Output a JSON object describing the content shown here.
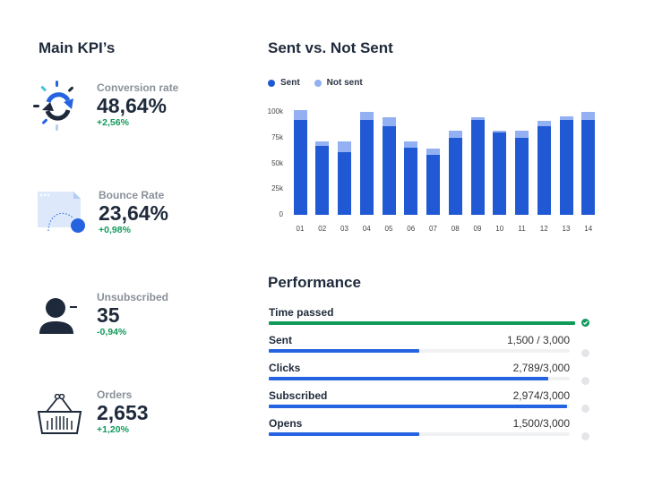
{
  "kpis": {
    "title": "Main KPI’s",
    "items": [
      {
        "label": "Conversion rate",
        "value": "48,64%",
        "delta": "+2,56%",
        "icon": "refresh-icon"
      },
      {
        "label": "Bounce Rate",
        "value": "23,64%",
        "delta": "+0,98%",
        "icon": "bounce-page-icon"
      },
      {
        "label": "Unsubscribed",
        "value": "35",
        "delta": "-0,94%",
        "icon": "user-minus-icon"
      },
      {
        "label": "Orders",
        "value": "2,653",
        "delta": "+1,20%",
        "icon": "basket-icon"
      }
    ]
  },
  "chart_data": {
    "type": "bar",
    "stacked": true,
    "title": "Sent vs. Not Sent",
    "categories": [
      "01",
      "02",
      "03",
      "04",
      "05",
      "06",
      "07",
      "08",
      "09",
      "10",
      "11",
      "12",
      "13",
      "14"
    ],
    "series": [
      {
        "name": "Sent",
        "color": "#2159d4",
        "values": [
          92000,
          67000,
          61000,
          92000,
          86000,
          65000,
          58000,
          75000,
          92000,
          80000,
          75000,
          86000,
          92000,
          92000
        ]
      },
      {
        "name": "Not sent",
        "color": "#92b0f2",
        "values": [
          10000,
          4000,
          10000,
          8000,
          9000,
          6000,
          6000,
          7000,
          3000,
          2000,
          7000,
          5000,
          4000,
          8000
        ]
      }
    ],
    "yticks": [
      "0",
      "25k",
      "50k",
      "75k",
      "100k"
    ],
    "ylim": [
      0,
      100000
    ],
    "legend": "top-left",
    "grid": false
  },
  "performance": {
    "title": "Performance",
    "items": [
      {
        "label": "Time passed",
        "value": "",
        "progress": 1.0,
        "color": "#109a5a",
        "done": true
      },
      {
        "label": "Sent",
        "value": "1,500 / 3,000",
        "progress": 0.5,
        "color": "#2563e0",
        "done": false
      },
      {
        "label": "Clicks",
        "value": "2,789/3,000",
        "progress": 0.93,
        "color": "#2563e0",
        "done": false
      },
      {
        "label": "Subscribed",
        "value": "2,974/3,000",
        "progress": 0.99,
        "color": "#2563e0",
        "done": false
      },
      {
        "label": "Opens",
        "value": "1,500/3,000",
        "progress": 0.5,
        "color": "#2563e0",
        "done": false
      }
    ]
  }
}
